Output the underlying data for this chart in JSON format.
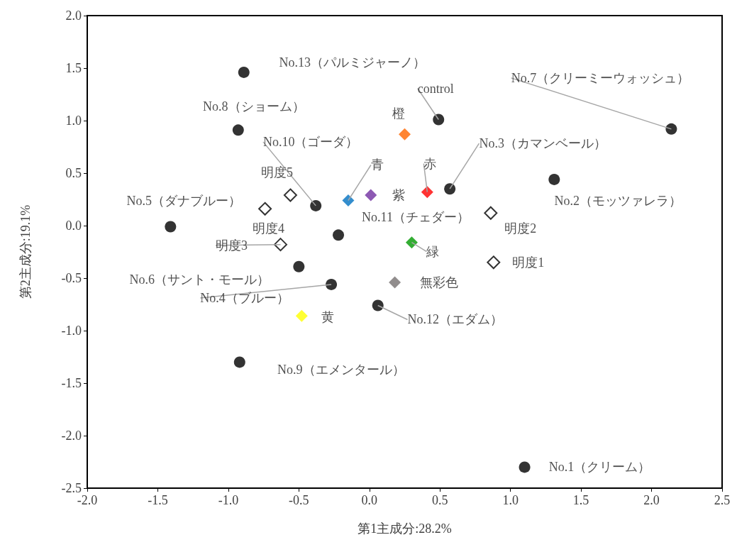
{
  "chart_data": {
    "type": "scatter",
    "xlabel": "第1主成分:28.2%",
    "ylabel": "第2主成分:19.1%",
    "xlim": [
      -2.0,
      2.5
    ],
    "ylim": [
      -2.5,
      2.0
    ],
    "xticks": [
      {
        "value": -2,
        "label": "-2.0"
      },
      -1.5,
      {
        "value": -1,
        "label": "-1.0"
      },
      -0.5,
      {
        "value": 0,
        "label": "0.0"
      },
      0.5,
      {
        "value": 1,
        "label": "1.0"
      },
      1.5,
      {
        "value": 2,
        "label": "2.0"
      },
      2.5
    ],
    "yticks": [
      {
        "value": -2.5,
        "label": "-2.5"
      },
      {
        "value": -2,
        "label": "-2.0"
      },
      -1.5,
      {
        "value": -1,
        "label": "-1.0"
      },
      -0.5,
      {
        "value": 0,
        "label": "0.0"
      },
      0.5,
      {
        "value": 1,
        "label": "1.0"
      },
      1.5,
      {
        "value": 2,
        "label": "2.0"
      }
    ],
    "series": [
      {
        "marker": "circle",
        "color": "#000000",
        "x": [
          1.1,
          1.31,
          0.57,
          -0.27,
          -1.41,
          -0.5,
          2.14,
          -0.93,
          -0.92,
          -0.38,
          -0.22,
          0.06,
          -0.89,
          0.49
        ],
        "values": [
          -2.3,
          0.44,
          0.35,
          -0.56,
          -0.01,
          -0.39,
          0.92,
          0.91,
          -1.3,
          0.19,
          -0.09,
          -0.76,
          1.46,
          1.01
        ]
      },
      {
        "marker": "diamond",
        "colors": [
          "#ff0000",
          "#ff6600",
          "#ffff00",
          "#009900",
          "#0070c0",
          "#7030a0",
          "#767171"
        ],
        "x": [
          0.41,
          0.25,
          -0.48,
          0.3,
          -0.15,
          0.01,
          0.18
        ],
        "values": [
          0.32,
          0.87,
          -0.86,
          -0.16,
          0.24,
          0.29,
          -0.54
        ]
      },
      {
        "marker": "diamond",
        "color": "#ffffff",
        "x": [
          0.88,
          0.86,
          -0.63,
          -0.74,
          -0.56
        ],
        "values": [
          -0.35,
          0.12,
          -0.18,
          0.16,
          0.29
        ]
      }
    ],
    "annotations": [
      {
        "text": "No.1（クリーム）",
        "x": 1.1,
        "y": -2.3
      },
      {
        "text": "No.2（モッツァレラ）",
        "x": 1.31,
        "y": 0.44
      },
      {
        "text": "No.3（カマンベール）",
        "x": 0.57,
        "y": 0.35
      },
      {
        "text": "No.4（ブルー）",
        "x": -0.27,
        "y": -0.56
      },
      {
        "text": "No.5（ダナブルー）",
        "x": -1.41,
        "y": -0.01
      },
      {
        "text": "No.6（サント・モール）",
        "x": -0.5,
        "y": -0.39
      },
      {
        "text": "No.7（クリーミーウォッシュ）",
        "x": 2.14,
        "y": 0.92
      },
      {
        "text": "No.8（ショーム）",
        "x": -0.93,
        "y": 0.91
      },
      {
        "text": "No.9（エメンタール）",
        "x": -0.92,
        "y": -1.3
      },
      {
        "text": "No.10（ゴーダ）",
        "x": -0.38,
        "y": 0.19
      },
      {
        "text": "No.11（チェダー）",
        "x": -0.22,
        "y": -0.09
      },
      {
        "text": "No.12（エダム）",
        "x": 0.06,
        "y": -0.76
      },
      {
        "text": "No.13（パルミジャーノ）",
        "x": -0.89,
        "y": 1.46
      },
      {
        "text": "control",
        "x": 0.49,
        "y": 1.01
      },
      {
        "text": "赤",
        "x": 0.41,
        "y": 0.32
      },
      {
        "text": "橙",
        "x": 0.25,
        "y": 0.87
      },
      {
        "text": "黄",
        "x": -0.48,
        "y": -0.86
      },
      {
        "text": "緑",
        "x": 0.3,
        "y": -0.16
      },
      {
        "text": "青",
        "x": -0.15,
        "y": 0.24
      },
      {
        "text": "紫",
        "x": 0.01,
        "y": 0.29
      },
      {
        "text": "無彩色",
        "x": 0.18,
        "y": -0.54
      },
      {
        "text": "明度1",
        "x": 0.88,
        "y": -0.35
      },
      {
        "text": "明度2",
        "x": 0.86,
        "y": 0.12
      },
      {
        "text": "明度3",
        "x": -0.63,
        "y": -0.18
      },
      {
        "text": "明度4",
        "x": -0.74,
        "y": 0.16
      },
      {
        "text": "明度5",
        "x": -0.56,
        "y": 0.29
      }
    ]
  }
}
